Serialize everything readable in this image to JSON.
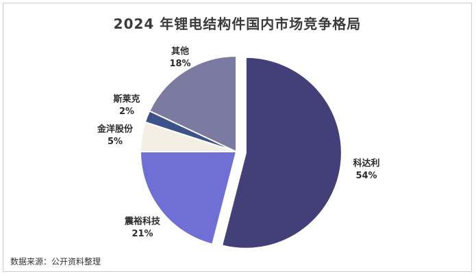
{
  "chart_data": {
    "type": "pie",
    "title": "2024 年锂电结构件国内市场竞争格局",
    "categories": [
      "科达利",
      "震裕科技",
      "金洋股份",
      "斯莱克",
      "其他"
    ],
    "values": [
      54,
      21,
      5,
      2,
      18
    ],
    "value_labels": [
      "54%",
      "21%",
      "5%",
      "2%",
      "18%"
    ],
    "colors": [
      "#433f78",
      "#6f6fd6",
      "#f4efe4",
      "#3c5289",
      "#7b7aa0"
    ],
    "exploded": "科达利",
    "legend": "none"
  },
  "source": "数据来源：公开资料整理"
}
